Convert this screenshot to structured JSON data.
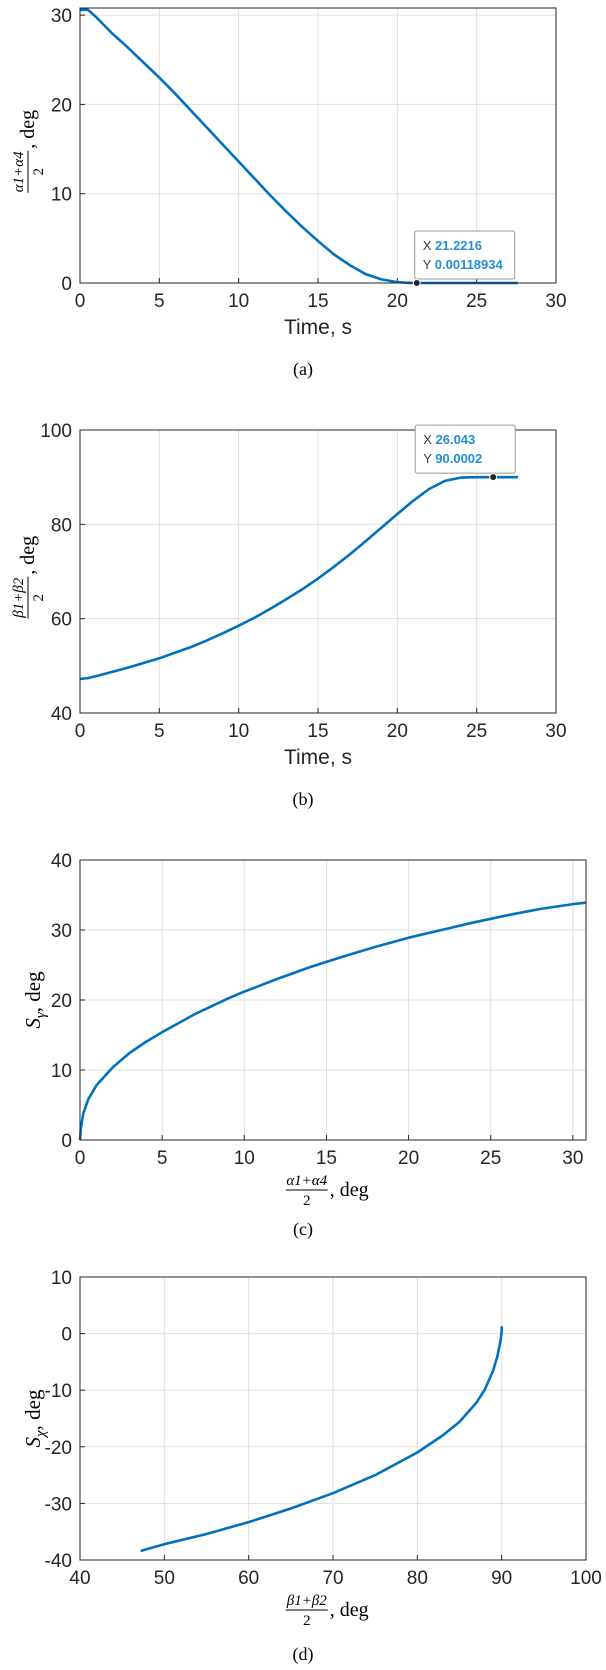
{
  "chart_data": [
    {
      "type": "line",
      "xlabel": "Time, s",
      "ylabel_parts": {
        "num": "α1+α4",
        "den": "2",
        "suffix": ", deg"
      },
      "caption": "(a)",
      "xlim": [
        0,
        30
      ],
      "ylim": [
        0,
        30.8
      ],
      "xticks": [
        "0",
        "5",
        "10",
        "15",
        "20",
        "25",
        "30"
      ],
      "yticks": [
        "0",
        "10",
        "20",
        "30"
      ],
      "grid": true,
      "color": "#0072bd",
      "x": [
        0,
        0.5,
        1,
        2,
        3,
        4,
        5,
        6,
        7,
        8,
        9,
        10,
        11,
        12,
        13,
        14,
        15,
        16,
        17,
        18,
        19,
        20,
        20.5,
        21,
        21.22,
        22,
        23,
        24,
        25,
        26,
        27,
        27.6
      ],
      "y": [
        30.6,
        30.6,
        29.8,
        28.0,
        26.4,
        24.7,
        23.0,
        21.2,
        19.3,
        17.4,
        15.5,
        13.6,
        11.7,
        9.8,
        8.0,
        6.3,
        4.7,
        3.2,
        2.0,
        1.0,
        0.4,
        0.1,
        0.03,
        0.01,
        0.0012,
        0,
        0,
        0,
        0,
        0,
        0,
        0
      ],
      "datatip": {
        "x_label": "X",
        "x_value": "21.2216",
        "y_label": "Y",
        "y_value": "0.00118934",
        "x": 21.2216,
        "y": 0.00118934
      }
    },
    {
      "type": "line",
      "xlabel": "Time, s",
      "ylabel_parts": {
        "num": "β1+β2",
        "den": "2",
        "suffix": ", deg"
      },
      "caption": "(b)",
      "xlim": [
        0,
        30
      ],
      "ylim": [
        40,
        100
      ],
      "xticks": [
        "0",
        "5",
        "10",
        "15",
        "20",
        "25",
        "30"
      ],
      "yticks": [
        "40",
        "60",
        "80",
        "100"
      ],
      "grid": true,
      "color": "#0072bd",
      "x": [
        0,
        0.5,
        1,
        2,
        3,
        4,
        5,
        6,
        7,
        8,
        9,
        10,
        11,
        12,
        13,
        14,
        15,
        16,
        17,
        18,
        19,
        20,
        21,
        22,
        23,
        24,
        25,
        26,
        27,
        27.6
      ],
      "y": [
        47.2,
        47.4,
        47.8,
        48.7,
        49.6,
        50.6,
        51.6,
        52.8,
        54.0,
        55.4,
        56.9,
        58.5,
        60.2,
        62.1,
        64.1,
        66.2,
        68.5,
        71.0,
        73.6,
        76.4,
        79.3,
        82.2,
        85.0,
        87.5,
        89.2,
        89.9,
        90.0,
        90.0,
        90.0,
        90.0
      ],
      "datatip": {
        "x_label": "X",
        "x_value": "26.043",
        "y_label": "Y",
        "y_value": "90.0002",
        "x": 26.043,
        "y": 90.0002
      }
    },
    {
      "type": "line",
      "xlabel_parts": {
        "num": "α1+α4",
        "den": "2",
        "suffix": ", deg"
      },
      "ylabel_parts": {
        "sym": "S",
        "sub": "γ",
        "suffix": ", deg"
      },
      "caption": "(c)",
      "xlim": [
        0,
        30.8
      ],
      "ylim": [
        0,
        40
      ],
      "xticks": [
        "0",
        "5",
        "10",
        "15",
        "20",
        "25",
        "30"
      ],
      "yticks": [
        "0",
        "10",
        "20",
        "30",
        "40"
      ],
      "grid": true,
      "color": "#0072bd",
      "x": [
        0,
        0.05,
        0.2,
        0.5,
        1,
        2,
        3,
        4,
        5,
        6,
        7,
        8,
        9,
        10,
        12,
        14,
        16,
        18,
        20,
        22,
        24,
        26,
        28,
        30,
        30.8
      ],
      "y": [
        0,
        1.6,
        3.8,
        5.8,
        7.8,
        10.4,
        12.4,
        14.0,
        15.4,
        16.7,
        18.0,
        19.1,
        20.2,
        21.2,
        23.0,
        24.7,
        26.2,
        27.6,
        28.9,
        30.0,
        31.1,
        32.1,
        33.0,
        33.7,
        33.9
      ]
    },
    {
      "type": "line",
      "xlabel_parts": {
        "num": "β1+β2",
        "den": "2",
        "suffix": ", deg"
      },
      "ylabel_parts": {
        "sym": "S",
        "sub": "χ",
        "suffix": ", deg"
      },
      "caption": "(d)",
      "xlim": [
        40,
        100
      ],
      "ylim": [
        -40,
        10
      ],
      "xticks": [
        "40",
        "50",
        "60",
        "70",
        "80",
        "90",
        "100"
      ],
      "yticks": [
        "-40",
        "-30",
        "-20",
        "-10",
        "0",
        "10"
      ],
      "grid": true,
      "color": "#0072bd",
      "x": [
        47.2,
        50,
        55,
        60,
        65,
        70,
        75,
        80,
        83,
        85,
        87,
        88,
        89,
        89.5,
        89.9,
        90.0,
        90.0
      ],
      "y": [
        -38.4,
        -37.2,
        -35.4,
        -33.3,
        -30.9,
        -28.2,
        -25.0,
        -21.0,
        -18.0,
        -15.6,
        -12.2,
        -9.9,
        -6.5,
        -4.0,
        -1.0,
        0.5,
        1.3
      ]
    }
  ]
}
